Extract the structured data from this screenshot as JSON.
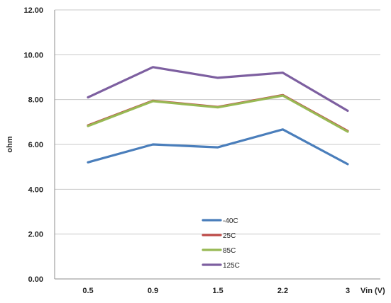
{
  "chart_data": {
    "type": "line",
    "categories": [
      "0.5",
      "0.9",
      "1.5",
      "2.2",
      "3"
    ],
    "xlabel": "Vin (V)",
    "ylabel": "ohm",
    "ylim": [
      0,
      12
    ],
    "y_ticks": [
      "0.00",
      "2.00",
      "4.00",
      "6.00",
      "8.00",
      "10.00",
      "12.00"
    ],
    "grid": true,
    "legend_position": "bottom-center",
    "series": [
      {
        "name": "-40C",
        "color": "#4a7ebb",
        "values": [
          5.2,
          6.0,
          5.87,
          6.67,
          5.12
        ]
      },
      {
        "name": "25C",
        "color": "#be4b48",
        "values": [
          6.85,
          7.95,
          7.67,
          8.2,
          6.6
        ]
      },
      {
        "name": "85C",
        "color": "#98b954",
        "values": [
          6.82,
          7.93,
          7.65,
          8.18,
          6.57
        ]
      },
      {
        "name": "125C",
        "color": "#7d5fa0",
        "values": [
          8.1,
          9.45,
          8.97,
          9.2,
          7.5
        ]
      }
    ]
  }
}
